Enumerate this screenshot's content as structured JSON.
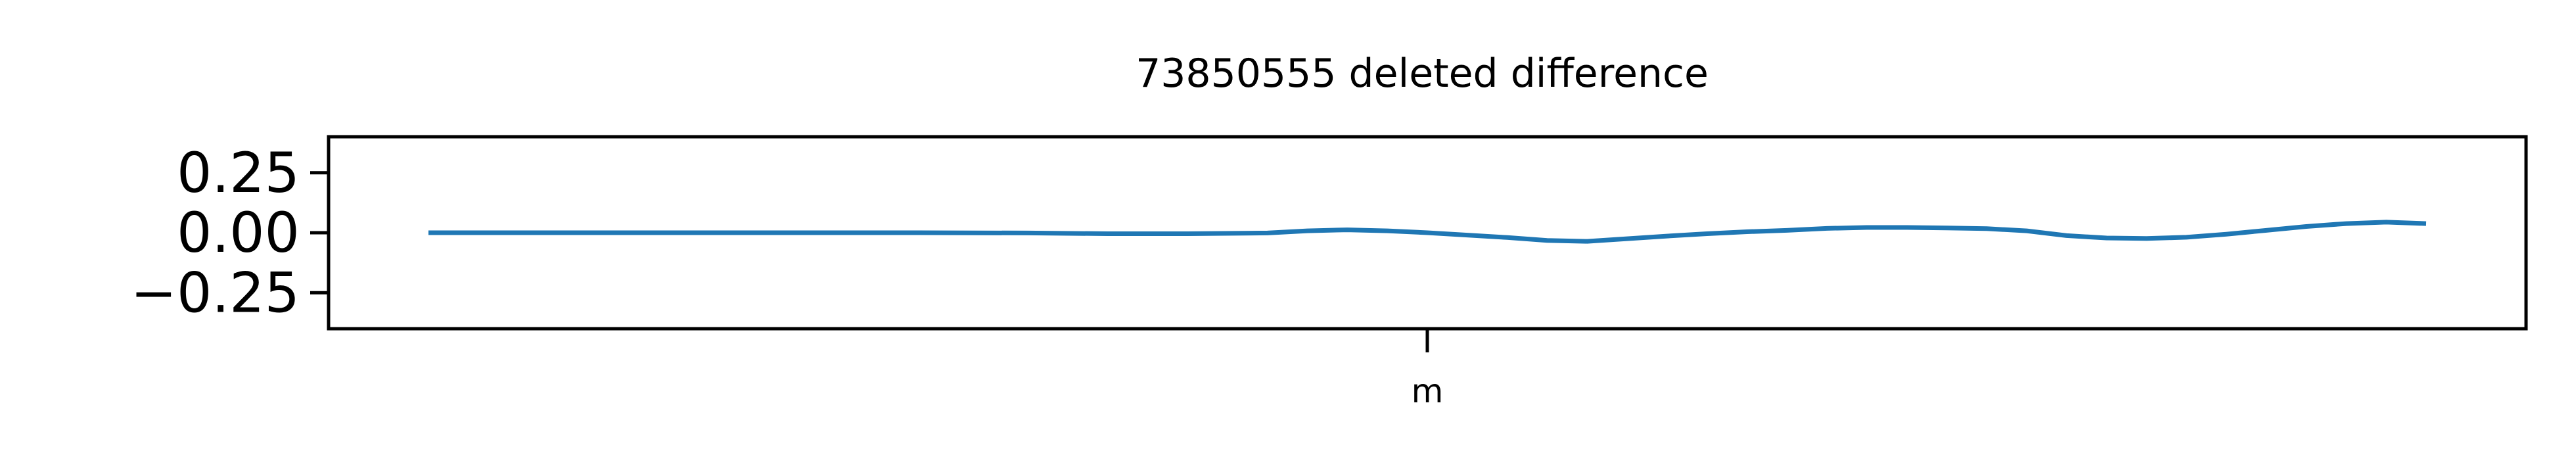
{
  "chart_data": {
    "type": "line",
    "title": "73850555 deleted difference",
    "xlabel": "",
    "ylabel": "",
    "x_tick_labels": [
      "m"
    ],
    "y_ticks": [
      0.25,
      0.0,
      -0.25
    ],
    "y_tick_labels": [
      "0.25",
      "0.00",
      "−0.25"
    ],
    "ylim": [
      -0.4,
      0.4
    ],
    "xlim": [
      -0.05,
      1.05
    ],
    "grid": false,
    "series": [
      {
        "color": "#1f77b4",
        "x": [
          0.0,
          0.06,
          0.12,
          0.18,
          0.24,
          0.3,
          0.34,
          0.38,
          0.42,
          0.44,
          0.46,
          0.48,
          0.5,
          0.52,
          0.54,
          0.56,
          0.58,
          0.6,
          0.62,
          0.64,
          0.66,
          0.68,
          0.7,
          0.72,
          0.74,
          0.76,
          0.78,
          0.8,
          0.82,
          0.84,
          0.86,
          0.88,
          0.9,
          0.92,
          0.94,
          0.96,
          0.98,
          1.0
        ],
        "y": [
          0.0,
          0.0,
          0.0,
          0.0,
          0.0,
          -0.001,
          -0.004,
          -0.004,
          -0.001,
          0.008,
          0.012,
          0.008,
          0.0,
          -0.01,
          -0.02,
          -0.032,
          -0.036,
          -0.025,
          -0.014,
          -0.004,
          0.004,
          0.01,
          0.018,
          0.022,
          0.022,
          0.02,
          0.017,
          0.008,
          -0.012,
          -0.022,
          -0.024,
          -0.019,
          -0.006,
          0.01,
          0.026,
          0.038,
          0.044,
          0.038
        ]
      }
    ]
  }
}
